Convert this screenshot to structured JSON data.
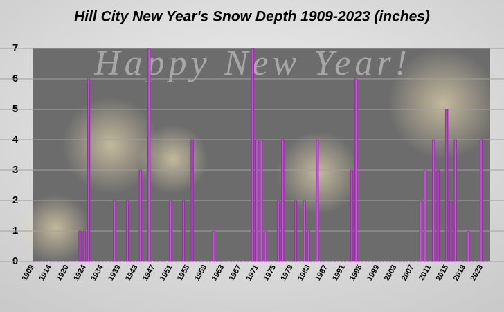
{
  "chart_data": {
    "type": "bar",
    "title": "Hill City New Year's Snow Depth 1909-2023 (inches)",
    "annotation": "Happy New Year!",
    "categories": [
      "1909",
      null,
      null,
      null,
      "1914",
      null,
      null,
      null,
      "1920",
      null,
      null,
      null,
      "1924",
      null,
      null,
      null,
      "1934",
      null,
      null,
      null,
      "1939",
      null,
      null,
      null,
      "1943",
      null,
      null,
      null,
      "1947",
      null,
      null,
      null,
      "1951",
      null,
      null,
      null,
      "1955",
      null,
      null,
      null,
      "1959",
      null,
      null,
      null,
      "1963",
      null,
      null,
      null,
      "1967",
      null,
      null,
      null,
      "1971",
      null,
      null,
      null,
      "1975",
      null,
      null,
      null,
      "1979",
      null,
      null,
      null,
      "1983",
      null,
      null,
      null,
      "1987",
      null,
      null,
      null,
      "1991",
      null,
      null,
      null,
      "1995",
      null,
      null,
      null,
      "1999",
      null,
      null,
      null,
      "2003",
      null,
      null,
      null,
      "2007",
      null,
      null,
      null,
      "2011",
      null,
      null,
      null,
      "2015",
      null,
      null,
      null,
      "2019",
      null,
      null,
      null,
      "2023"
    ],
    "values": [
      0,
      0,
      0,
      0,
      0,
      0,
      0,
      0,
      0,
      0,
      0,
      1,
      1,
      6,
      0,
      0,
      0,
      0,
      0,
      2,
      0,
      0,
      2,
      0,
      0,
      3,
      0,
      7,
      0,
      0,
      0,
      0,
      2,
      0,
      0,
      2,
      0,
      4,
      0,
      0,
      0,
      0,
      1,
      0,
      0,
      0,
      0,
      0,
      0,
      0,
      0,
      7,
      4,
      4,
      1,
      0,
      0,
      2,
      4,
      0,
      0,
      2,
      0,
      2,
      1,
      0,
      4,
      0,
      0,
      0,
      0,
      0,
      0,
      0,
      3,
      6,
      0,
      0,
      0,
      0,
      0,
      0,
      0,
      0,
      0,
      0,
      0,
      0,
      0,
      0,
      2,
      3,
      0,
      4,
      3,
      0,
      5,
      2,
      4,
      0,
      0,
      1,
      0,
      0,
      4
    ],
    "color": "#a52fb5",
    "ylim": [
      0,
      7
    ],
    "yticks": [
      0,
      1,
      2,
      3,
      4,
      5,
      6,
      7
    ],
    "grid": true
  }
}
